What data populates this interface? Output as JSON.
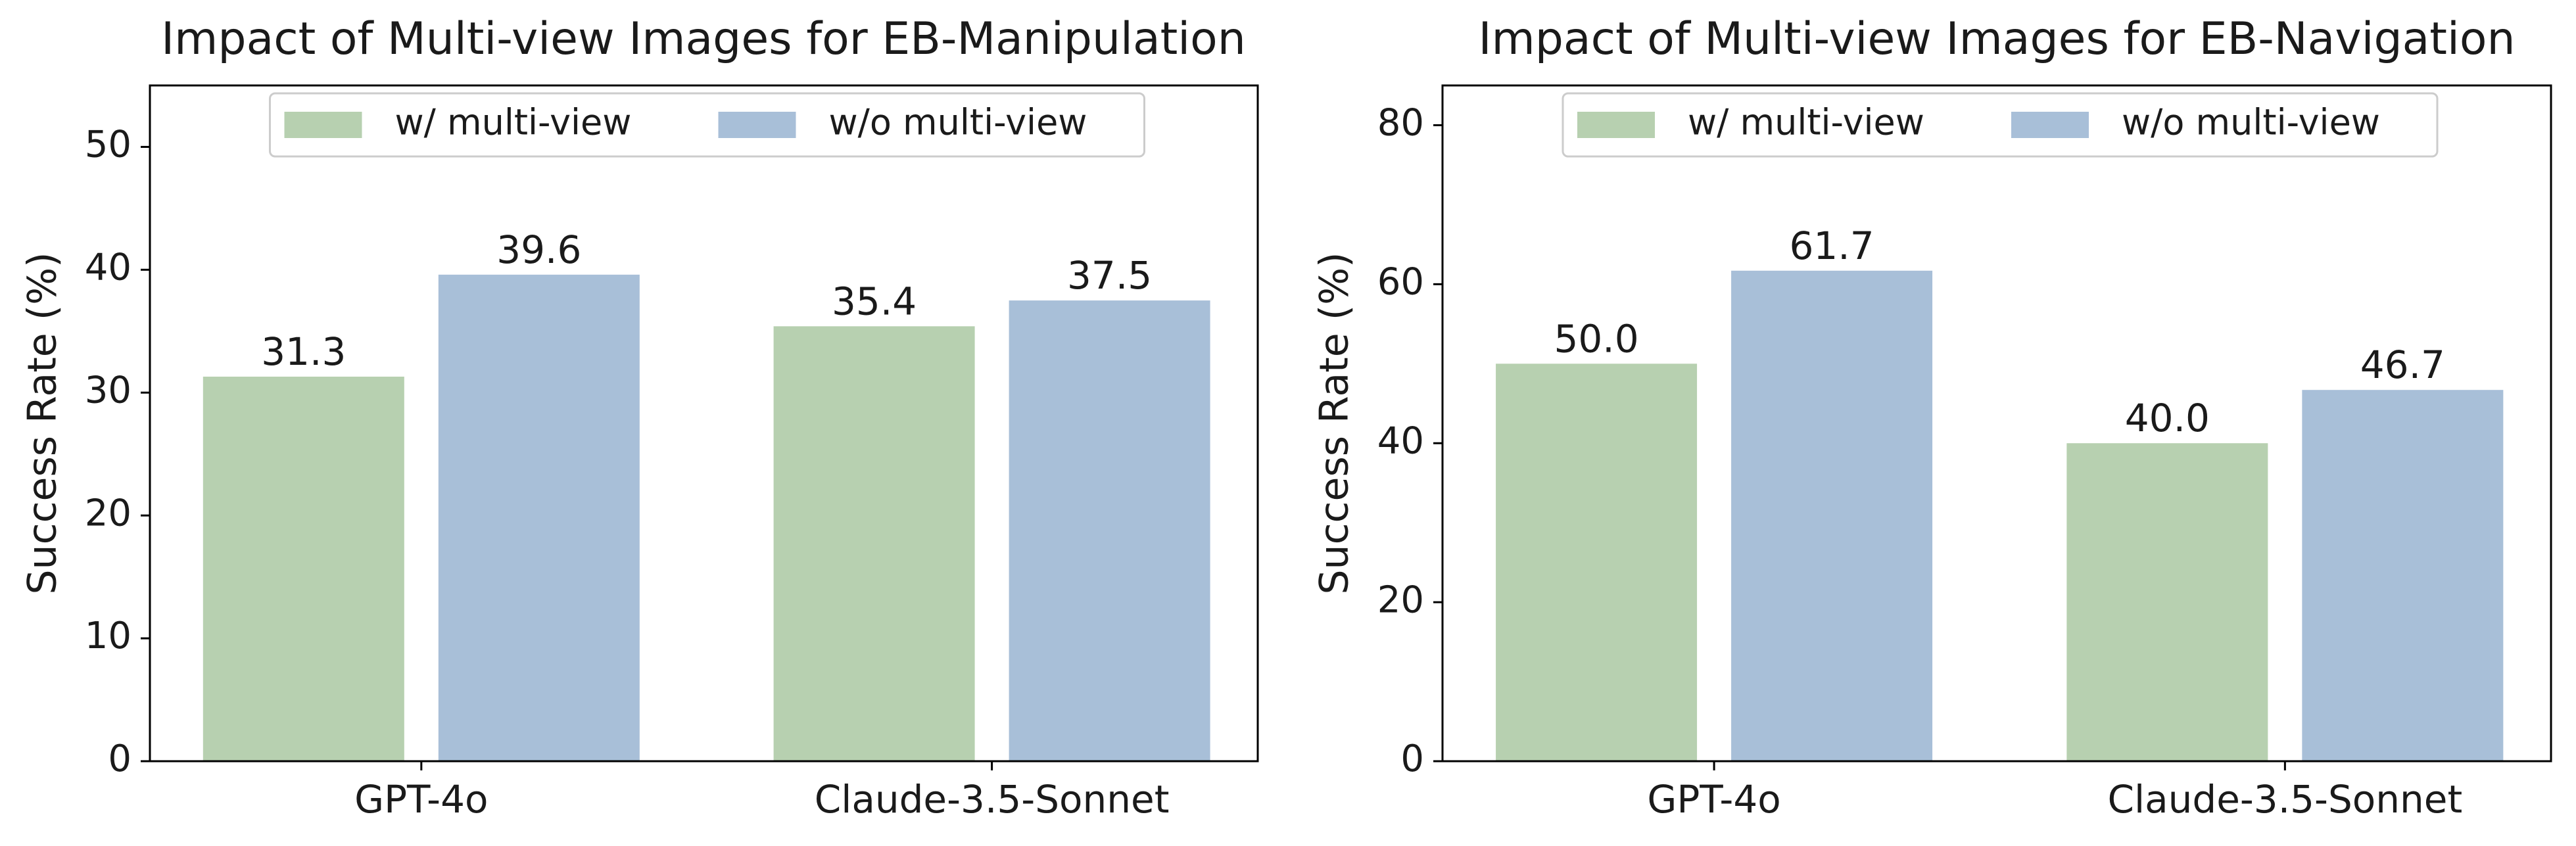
{
  "colors": {
    "with_multiview": "#b7d0b0",
    "without_multiview": "#a8bfd8",
    "axis": "#000000",
    "legend_border": "#cccccc"
  },
  "chart_data": [
    {
      "type": "bar",
      "title": "Impact of Multi-view Images for EB-Manipulation",
      "xlabel": "",
      "ylabel": "Success Rate (%)",
      "ylim": [
        0,
        55
      ],
      "yticks": [
        0,
        10,
        20,
        30,
        40,
        50
      ],
      "categories": [
        "GPT-4o",
        "Claude-3.5-Sonnet"
      ],
      "series": [
        {
          "name": "w/ multi-view",
          "values": [
            31.3,
            35.4
          ],
          "labels": [
            "31.3",
            "35.4"
          ]
        },
        {
          "name": "w/o multi-view",
          "values": [
            39.6,
            37.5
          ],
          "labels": [
            "39.6",
            "37.5"
          ]
        }
      ],
      "legend": "top-center",
      "grid": false
    },
    {
      "type": "bar",
      "title": "Impact of Multi-view Images for EB-Navigation",
      "xlabel": "",
      "ylabel": "Success Rate (%)",
      "ylim": [
        0,
        85
      ],
      "yticks": [
        0,
        20,
        40,
        60,
        80
      ],
      "categories": [
        "GPT-4o",
        "Claude-3.5-Sonnet"
      ],
      "series": [
        {
          "name": "w/ multi-view",
          "values": [
            50.0,
            40.0
          ],
          "labels": [
            "50.0",
            "40.0"
          ]
        },
        {
          "name": "w/o multi-view",
          "values": [
            61.7,
            46.7
          ],
          "labels": [
            "61.7",
            "46.7"
          ]
        }
      ],
      "legend": "top-center",
      "grid": false
    }
  ]
}
